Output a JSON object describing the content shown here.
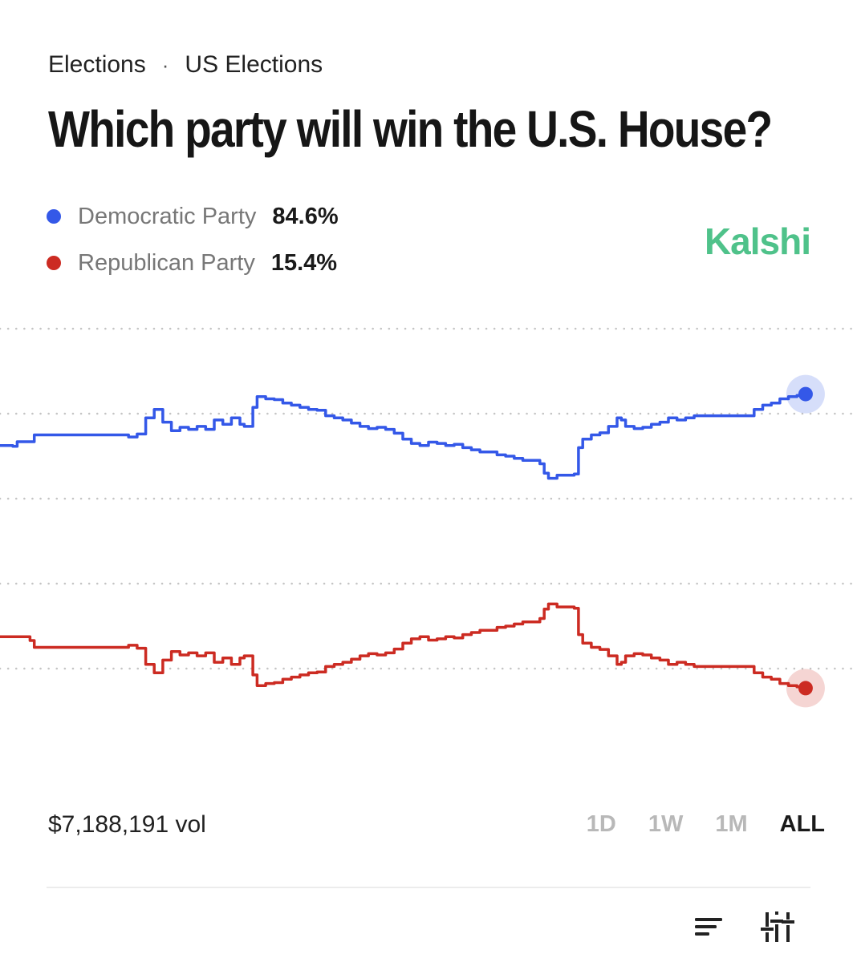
{
  "breadcrumb": {
    "category": "Elections",
    "separator": "·",
    "subcategory": "US Elections"
  },
  "title": "Which party will win the U.S. House?",
  "brand": {
    "name": "Kalshi",
    "color": "#4fc28a"
  },
  "legend": [
    {
      "name": "Democratic Party",
      "value": "84.6%",
      "color": "#3458e8"
    },
    {
      "name": "Republican Party",
      "value": "15.4%",
      "color": "#cc2b22"
    }
  ],
  "footer": {
    "volume": "$7,188,191 vol",
    "ranges": [
      {
        "label": "1D",
        "active": false
      },
      {
        "label": "1W",
        "active": false
      },
      {
        "label": "1M",
        "active": false
      },
      {
        "label": "ALL",
        "active": true
      }
    ]
  },
  "icons": {
    "sort": "sort-icon",
    "filter": "sliders-icon"
  },
  "chart_data": {
    "type": "line",
    "title": "Which party will win the U.S. House?",
    "xlabel": "",
    "ylabel": "",
    "x_range": [
      0,
      100
    ],
    "ylim": [
      0,
      100
    ],
    "gridlines_y": [
      20,
      40,
      60,
      80,
      100
    ],
    "grid": "dotted horizontal",
    "legend_placement": "top-left",
    "series": [
      {
        "name": "Democratic Party",
        "color": "#3458e8",
        "end_value": 84.6,
        "points": [
          [
            0,
            72.5
          ],
          [
            1.5,
            72.3
          ],
          [
            2,
            73.4
          ],
          [
            3.5,
            73.4
          ],
          [
            4,
            75
          ],
          [
            10,
            75
          ],
          [
            14.5,
            75
          ],
          [
            15,
            74.5
          ],
          [
            16,
            75.2
          ],
          [
            17,
            79
          ],
          [
            18,
            81
          ],
          [
            19,
            78
          ],
          [
            20,
            76
          ],
          [
            21,
            76.8
          ],
          [
            22,
            76.3
          ],
          [
            23,
            77
          ],
          [
            24,
            76.3
          ],
          [
            25,
            78.5
          ],
          [
            26,
            77.5
          ],
          [
            27,
            79
          ],
          [
            28,
            77.5
          ],
          [
            28.5,
            77
          ],
          [
            29.5,
            81.5
          ],
          [
            30,
            84
          ],
          [
            31,
            83.5
          ],
          [
            32,
            83.3
          ],
          [
            33,
            82.5
          ],
          [
            34,
            82
          ],
          [
            35,
            81.5
          ],
          [
            36,
            81
          ],
          [
            37,
            80.8
          ],
          [
            38,
            79.5
          ],
          [
            39,
            79
          ],
          [
            40,
            78.5
          ],
          [
            41,
            77.8
          ],
          [
            42,
            77
          ],
          [
            43,
            76.5
          ],
          [
            44,
            76.8
          ],
          [
            45,
            76.3
          ],
          [
            46,
            75.4
          ],
          [
            47,
            74
          ],
          [
            48,
            73
          ],
          [
            49,
            72.5
          ],
          [
            50,
            73.3
          ],
          [
            51,
            73
          ],
          [
            52,
            72.5
          ],
          [
            53,
            72.8
          ],
          [
            54,
            72
          ],
          [
            55,
            71.5
          ],
          [
            56,
            71
          ],
          [
            57,
            71
          ],
          [
            58,
            70.3
          ],
          [
            59,
            70
          ],
          [
            60,
            69.5
          ],
          [
            61,
            69
          ],
          [
            62,
            69
          ],
          [
            63,
            68.2
          ],
          [
            63.5,
            66
          ],
          [
            64,
            64.8
          ],
          [
            65,
            65.5
          ],
          [
            66,
            65.5
          ],
          [
            67,
            65.8
          ],
          [
            67.5,
            72
          ],
          [
            68,
            74
          ],
          [
            69,
            75
          ],
          [
            70,
            75.5
          ],
          [
            71,
            77
          ],
          [
            72,
            79
          ],
          [
            72.5,
            78.5
          ],
          [
            73,
            77
          ],
          [
            74,
            76.5
          ],
          [
            75,
            76.8
          ],
          [
            76,
            77.5
          ],
          [
            77,
            78
          ],
          [
            78,
            79
          ],
          [
            79,
            78.5
          ],
          [
            80,
            79
          ],
          [
            81,
            79.5
          ],
          [
            82,
            79.5
          ],
          [
            83,
            79.5
          ],
          [
            84,
            79.5
          ],
          [
            85,
            79.5
          ],
          [
            86,
            79.5
          ],
          [
            87,
            79.5
          ],
          [
            88,
            81
          ],
          [
            89,
            82
          ],
          [
            90,
            82.5
          ],
          [
            91,
            83.5
          ],
          [
            92,
            84
          ],
          [
            93,
            84.3
          ],
          [
            94,
            84.6
          ]
        ]
      },
      {
        "name": "Republican Party",
        "color": "#cc2b22",
        "end_value": 15.4,
        "points": [
          [
            0,
            27.5
          ],
          [
            2,
            27.5
          ],
          [
            3.5,
            26.6
          ],
          [
            4,
            25
          ],
          [
            10,
            25
          ],
          [
            14.5,
            25
          ],
          [
            15,
            25.5
          ],
          [
            16,
            24.8
          ],
          [
            17,
            21
          ],
          [
            18,
            19
          ],
          [
            19,
            22
          ],
          [
            20,
            24
          ],
          [
            21,
            23.2
          ],
          [
            22,
            23.7
          ],
          [
            23,
            23
          ],
          [
            24,
            23.7
          ],
          [
            25,
            21.5
          ],
          [
            26,
            22.5
          ],
          [
            27,
            21
          ],
          [
            28,
            22.5
          ],
          [
            28.5,
            23
          ],
          [
            29.5,
            18.5
          ],
          [
            30,
            16
          ],
          [
            31,
            16.5
          ],
          [
            32,
            16.7
          ],
          [
            33,
            17.5
          ],
          [
            34,
            18
          ],
          [
            35,
            18.5
          ],
          [
            36,
            19
          ],
          [
            37,
            19.2
          ],
          [
            38,
            20.5
          ],
          [
            39,
            21
          ],
          [
            40,
            21.5
          ],
          [
            41,
            22.2
          ],
          [
            42,
            23
          ],
          [
            43,
            23.5
          ],
          [
            44,
            23.2
          ],
          [
            45,
            23.7
          ],
          [
            46,
            24.6
          ],
          [
            47,
            26
          ],
          [
            48,
            27
          ],
          [
            49,
            27.5
          ],
          [
            50,
            26.7
          ],
          [
            51,
            27
          ],
          [
            52,
            27.5
          ],
          [
            53,
            27.2
          ],
          [
            54,
            28
          ],
          [
            55,
            28.5
          ],
          [
            56,
            29
          ],
          [
            57,
            29
          ],
          [
            58,
            29.7
          ],
          [
            59,
            30
          ],
          [
            60,
            30.5
          ],
          [
            61,
            31
          ],
          [
            62,
            31
          ],
          [
            63,
            31.8
          ],
          [
            63.5,
            34
          ],
          [
            64,
            35.2
          ],
          [
            65,
            34.5
          ],
          [
            66,
            34.5
          ],
          [
            67,
            34.2
          ],
          [
            67.5,
            28
          ],
          [
            68,
            26
          ],
          [
            69,
            25
          ],
          [
            70,
            24.5
          ],
          [
            71,
            23
          ],
          [
            72,
            21
          ],
          [
            72.5,
            21.5
          ],
          [
            73,
            23
          ],
          [
            74,
            23.5
          ],
          [
            75,
            23.2
          ],
          [
            76,
            22.5
          ],
          [
            77,
            22
          ],
          [
            78,
            21
          ],
          [
            79,
            21.5
          ],
          [
            80,
            21
          ],
          [
            81,
            20.5
          ],
          [
            82,
            20.5
          ],
          [
            83,
            20.5
          ],
          [
            84,
            20.5
          ],
          [
            85,
            20.5
          ],
          [
            86,
            20.5
          ],
          [
            87,
            20.5
          ],
          [
            88,
            19
          ],
          [
            89,
            18
          ],
          [
            90,
            17.5
          ],
          [
            91,
            16.5
          ],
          [
            92,
            16
          ],
          [
            93,
            15.7
          ],
          [
            94,
            15.4
          ]
        ]
      }
    ]
  }
}
